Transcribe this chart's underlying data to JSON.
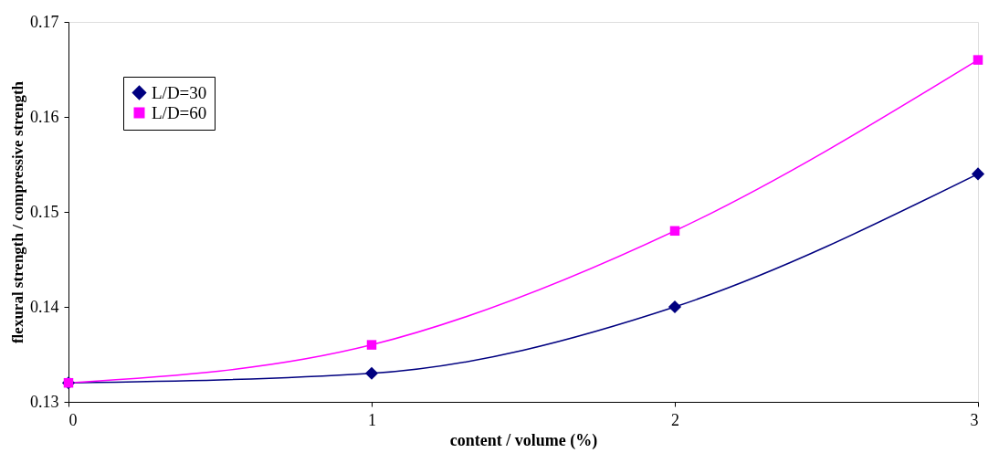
{
  "chart_data": {
    "type": "line",
    "xlabel": "content / volume (%)",
    "ylabel": "flexural strength / compressive strength",
    "x": [
      0,
      1,
      2,
      3
    ],
    "series": [
      {
        "name": "L/D=30",
        "color": "#000080",
        "marker": "diamond",
        "values": [
          0.132,
          0.133,
          0.14,
          0.154
        ]
      },
      {
        "name": "L/D=60",
        "color": "#ff00ff",
        "marker": "square",
        "values": [
          0.132,
          0.136,
          0.148,
          0.166
        ]
      }
    ],
    "xlim": [
      0,
      3
    ],
    "xticks": [
      0,
      1,
      2,
      3
    ],
    "ylim": [
      0.13,
      0.17
    ],
    "yticks": [
      0.13,
      0.14,
      0.15,
      0.16,
      0.17
    ],
    "grid": false,
    "legend": "top left",
    "line_style": "solid"
  }
}
